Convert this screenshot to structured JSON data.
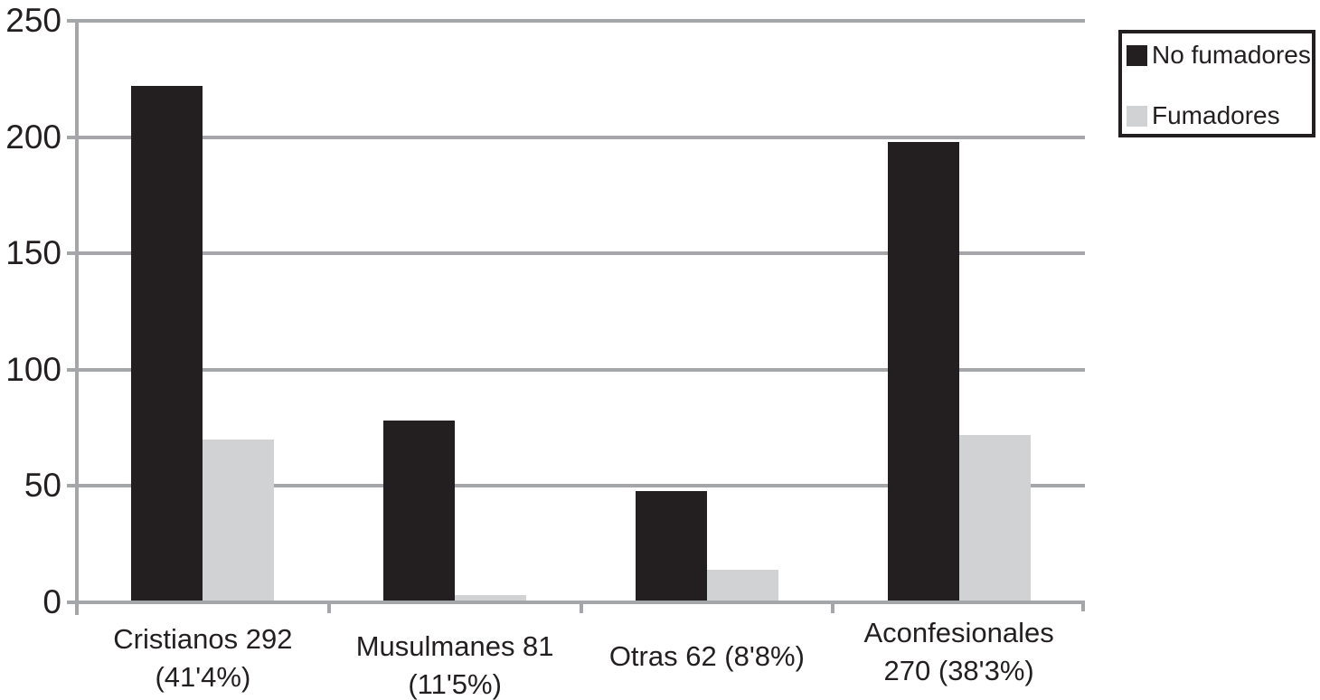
{
  "chart_data": {
    "type": "bar",
    "categories": [
      [
        "Cristianos 292",
        "(41'4%)"
      ],
      [
        "Musulmanes 81",
        "(11'5%)"
      ],
      [
        "Otras 62 (8'8%)"
      ],
      [
        "Aconfesionales",
        "270 (38'3%)"
      ]
    ],
    "series": [
      {
        "name": "No fumadores",
        "color": "#231f20",
        "values": [
          222,
          78,
          48,
          198
        ]
      },
      {
        "name": "Fumadores",
        "color": "#d0d2d3",
        "values": [
          70,
          3,
          14,
          72
        ]
      }
    ],
    "title": "",
    "xlabel": "",
    "ylabel": "",
    "ylim": [
      0,
      250
    ],
    "yticks": [
      0,
      50,
      100,
      150,
      200,
      250
    ],
    "grid": true,
    "legend_position": "top-right"
  },
  "colors": {
    "bar_no_fumadores": "#231f20",
    "bar_fumadores": "#d0d2d3",
    "gridline": "#a4a6a9",
    "axis": "#a4a6a9",
    "text": "#231f20",
    "legend_border": "#231f20",
    "background": "#ffffff"
  }
}
